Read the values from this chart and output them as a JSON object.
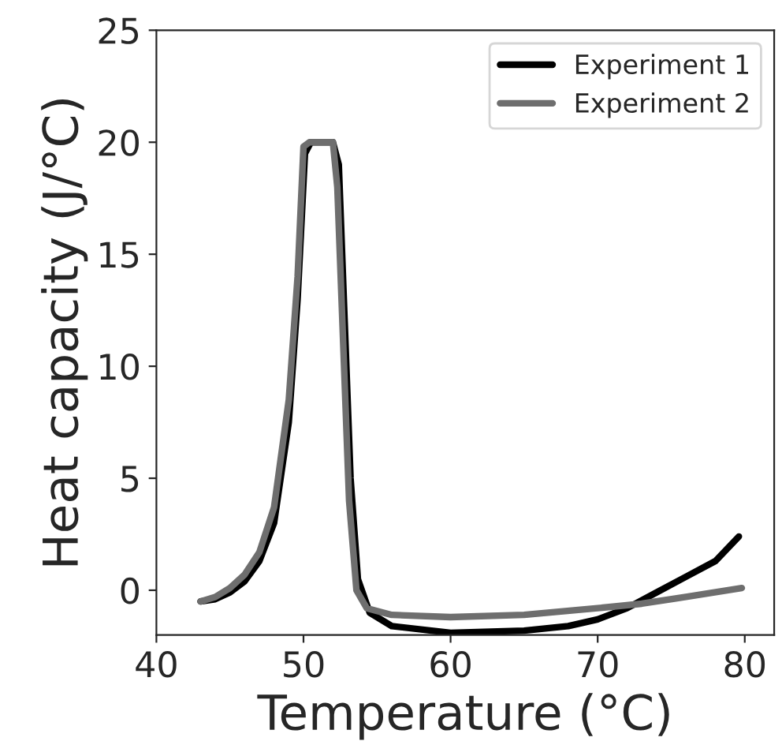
{
  "chart_data": {
    "type": "line",
    "xlabel": "Temperature (°C)",
    "ylabel": "Heat capacity (J/°C)",
    "xlim": [
      40,
      82
    ],
    "ylim": [
      -2,
      25
    ],
    "xticks": [
      40,
      50,
      60,
      70,
      80
    ],
    "yticks": [
      0,
      5,
      10,
      15,
      20,
      25
    ],
    "grid": false,
    "legend": "top right",
    "line_style": "solid",
    "series": [
      {
        "name": "Experiment 1",
        "color": "#000000",
        "x": [
          43,
          44,
          45,
          46,
          47,
          48,
          49,
          49.6,
          50.1,
          50.5,
          52.0,
          52.4,
          52.8,
          53.2,
          53.7,
          54.5,
          56,
          60,
          65,
          68,
          70,
          72,
          74,
          76,
          78,
          79.6
        ],
        "values": [
          -0.5,
          -0.4,
          -0.1,
          0.4,
          1.3,
          3.0,
          7.5,
          13,
          19.5,
          20,
          20,
          19,
          12,
          5,
          0.5,
          -1.0,
          -1.6,
          -1.9,
          -1.8,
          -1.6,
          -1.3,
          -0.8,
          -0.1,
          0.6,
          1.3,
          2.4
        ]
      },
      {
        "name": "Experiment 2",
        "color": "#6e6e6e",
        "x": [
          43,
          44,
          45,
          46,
          47,
          48,
          49,
          49.6,
          50,
          50.4,
          52,
          52.3,
          52.7,
          53.1,
          53.6,
          54.3,
          56,
          60,
          65,
          70,
          73,
          76,
          79.8
        ],
        "values": [
          -0.5,
          -0.3,
          0.1,
          0.7,
          1.7,
          3.7,
          8.5,
          14,
          19.8,
          20,
          20,
          18,
          11,
          4,
          0,
          -0.8,
          -1.1,
          -1.2,
          -1.1,
          -0.8,
          -0.6,
          -0.3,
          0.1
        ]
      }
    ]
  }
}
